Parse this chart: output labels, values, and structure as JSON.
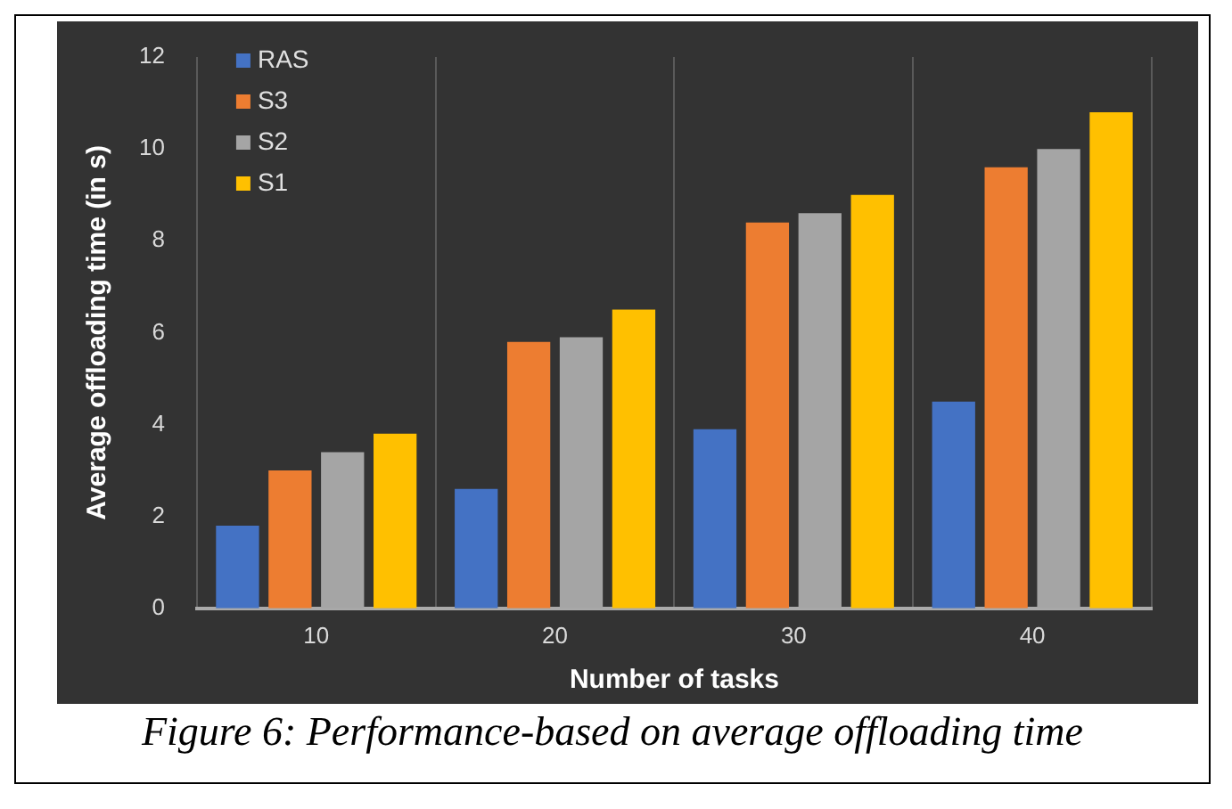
{
  "chart_data": {
    "type": "bar",
    "xlabel": "Number of tasks",
    "ylabel": "Average offloading time (in s)",
    "categories": [
      "10",
      "20",
      "30",
      "40"
    ],
    "series": [
      {
        "name": "RAS",
        "color": "#4472c4",
        "values": [
          1.8,
          2.6,
          3.9,
          4.5
        ]
      },
      {
        "name": "S3",
        "color": "#ed7d31",
        "values": [
          3.0,
          5.8,
          8.4,
          9.6
        ]
      },
      {
        "name": "S2",
        "color": "#a5a5a5",
        "values": [
          3.4,
          5.9,
          8.6,
          10.0
        ]
      },
      {
        "name": "S1",
        "color": "#ffc000",
        "values": [
          3.8,
          6.5,
          9.0,
          10.8
        ]
      }
    ],
    "ylim": [
      0,
      12
    ],
    "yticks": [
      0,
      2,
      4,
      6,
      8,
      10,
      12
    ],
    "grid": "x",
    "legend": "top left",
    "annotations": [
      "Figure 6: Performance-based on average offloading time"
    ]
  }
}
